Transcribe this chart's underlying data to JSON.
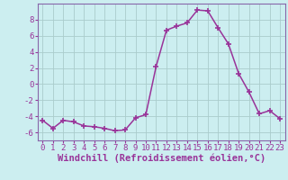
{
  "x": [
    0,
    1,
    2,
    3,
    4,
    5,
    6,
    7,
    8,
    9,
    10,
    11,
    12,
    13,
    14,
    15,
    16,
    17,
    18,
    19,
    20,
    21,
    22,
    23
  ],
  "y": [
    -4.5,
    -5.5,
    -4.5,
    -4.7,
    -5.2,
    -5.3,
    -5.5,
    -5.8,
    -5.7,
    -4.2,
    -3.8,
    2.2,
    6.7,
    7.2,
    7.6,
    9.2,
    9.1,
    7.0,
    5.0,
    1.3,
    -1.0,
    -3.7,
    -3.3,
    -4.3
  ],
  "line_color": "#993399",
  "marker": "+",
  "marker_size": 4,
  "marker_lw": 1.2,
  "bg_color": "#cceef0",
  "grid_color": "#aacccc",
  "xlabel": "Windchill (Refroidissement éolien,°C)",
  "ylabel": "",
  "xlim": [
    -0.5,
    23.5
  ],
  "ylim": [
    -7,
    10
  ],
  "yticks": [
    -6,
    -4,
    -2,
    0,
    2,
    4,
    6,
    8
  ],
  "xticks": [
    0,
    1,
    2,
    3,
    4,
    5,
    6,
    7,
    8,
    9,
    10,
    11,
    12,
    13,
    14,
    15,
    16,
    17,
    18,
    19,
    20,
    21,
    22,
    23
  ],
  "label_fontsize": 7.5,
  "tick_fontsize": 6.5,
  "spine_color": "#8866aa",
  "line_width": 1.1
}
